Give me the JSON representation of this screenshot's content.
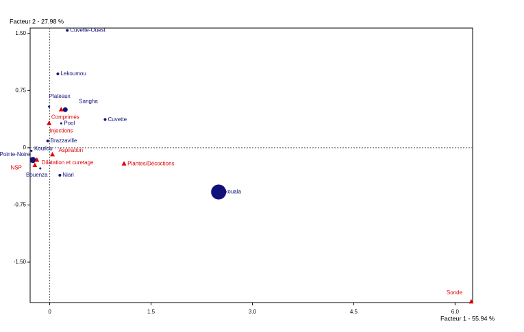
{
  "chart_data": {
    "type": "scatter",
    "ylabel": "Facteur 2  -  27.98 %",
    "xlabel": "Facteur 1  -  55.94 %",
    "xlim": [
      -0.29,
      6.26
    ],
    "ylim": [
      -2.03,
      1.57
    ],
    "xticks": [
      0,
      1.5,
      {
        "value": 3,
        "label": "3.0"
      },
      4.5,
      {
        "value": 6,
        "label": "6.0"
      }
    ],
    "yticks": [
      {
        "value": 1.5,
        "label": "1.50"
      },
      0.75,
      0,
      -0.75,
      {
        "value": -1.5,
        "label": "-1.50"
      }
    ],
    "origin_lines": true,
    "series": [
      {
        "marker": "circle",
        "color": "#10107a",
        "labels": [
          "Cuvette-Ouest",
          "Lekoumou",
          "Plateaux",
          "Sangha",
          "Pool",
          "Cuvette",
          "Brazzaville",
          "Kouilou",
          "Pointe-Noire",
          "Bouenza",
          "Niari",
          "Likouala"
        ],
        "x": [
          0.26,
          0.12,
          -0.01,
          0.23,
          0.17,
          0.82,
          -0.03,
          -0.27,
          -0.25,
          -0.14,
          0.15,
          2.5
        ],
        "values": [
          1.54,
          0.97,
          0.54,
          0.5,
          0.32,
          0.37,
          0.09,
          -0.04,
          -0.16,
          -0.27,
          -0.36,
          -0.58
        ],
        "sizes": [
          2,
          2,
          1.5,
          3.5,
          1.5,
          2,
          2,
          1.5,
          4.5,
          1.5,
          2,
          11
        ]
      },
      {
        "marker": "triangle",
        "color": "#e00000",
        "labels": [
          "Comprimés",
          "Injections",
          "Aspiration",
          "Dilatation et curetage",
          "NSP",
          "Plantes/Décoctions",
          "Sonde"
        ],
        "x": [
          0.17,
          -0.01,
          0.04,
          -0.19,
          -0.22,
          1.1,
          6.24
        ],
        "values": [
          0.5,
          0.32,
          -0.09,
          -0.16,
          -0.23,
          -0.21,
          -2.02
        ]
      }
    ]
  }
}
